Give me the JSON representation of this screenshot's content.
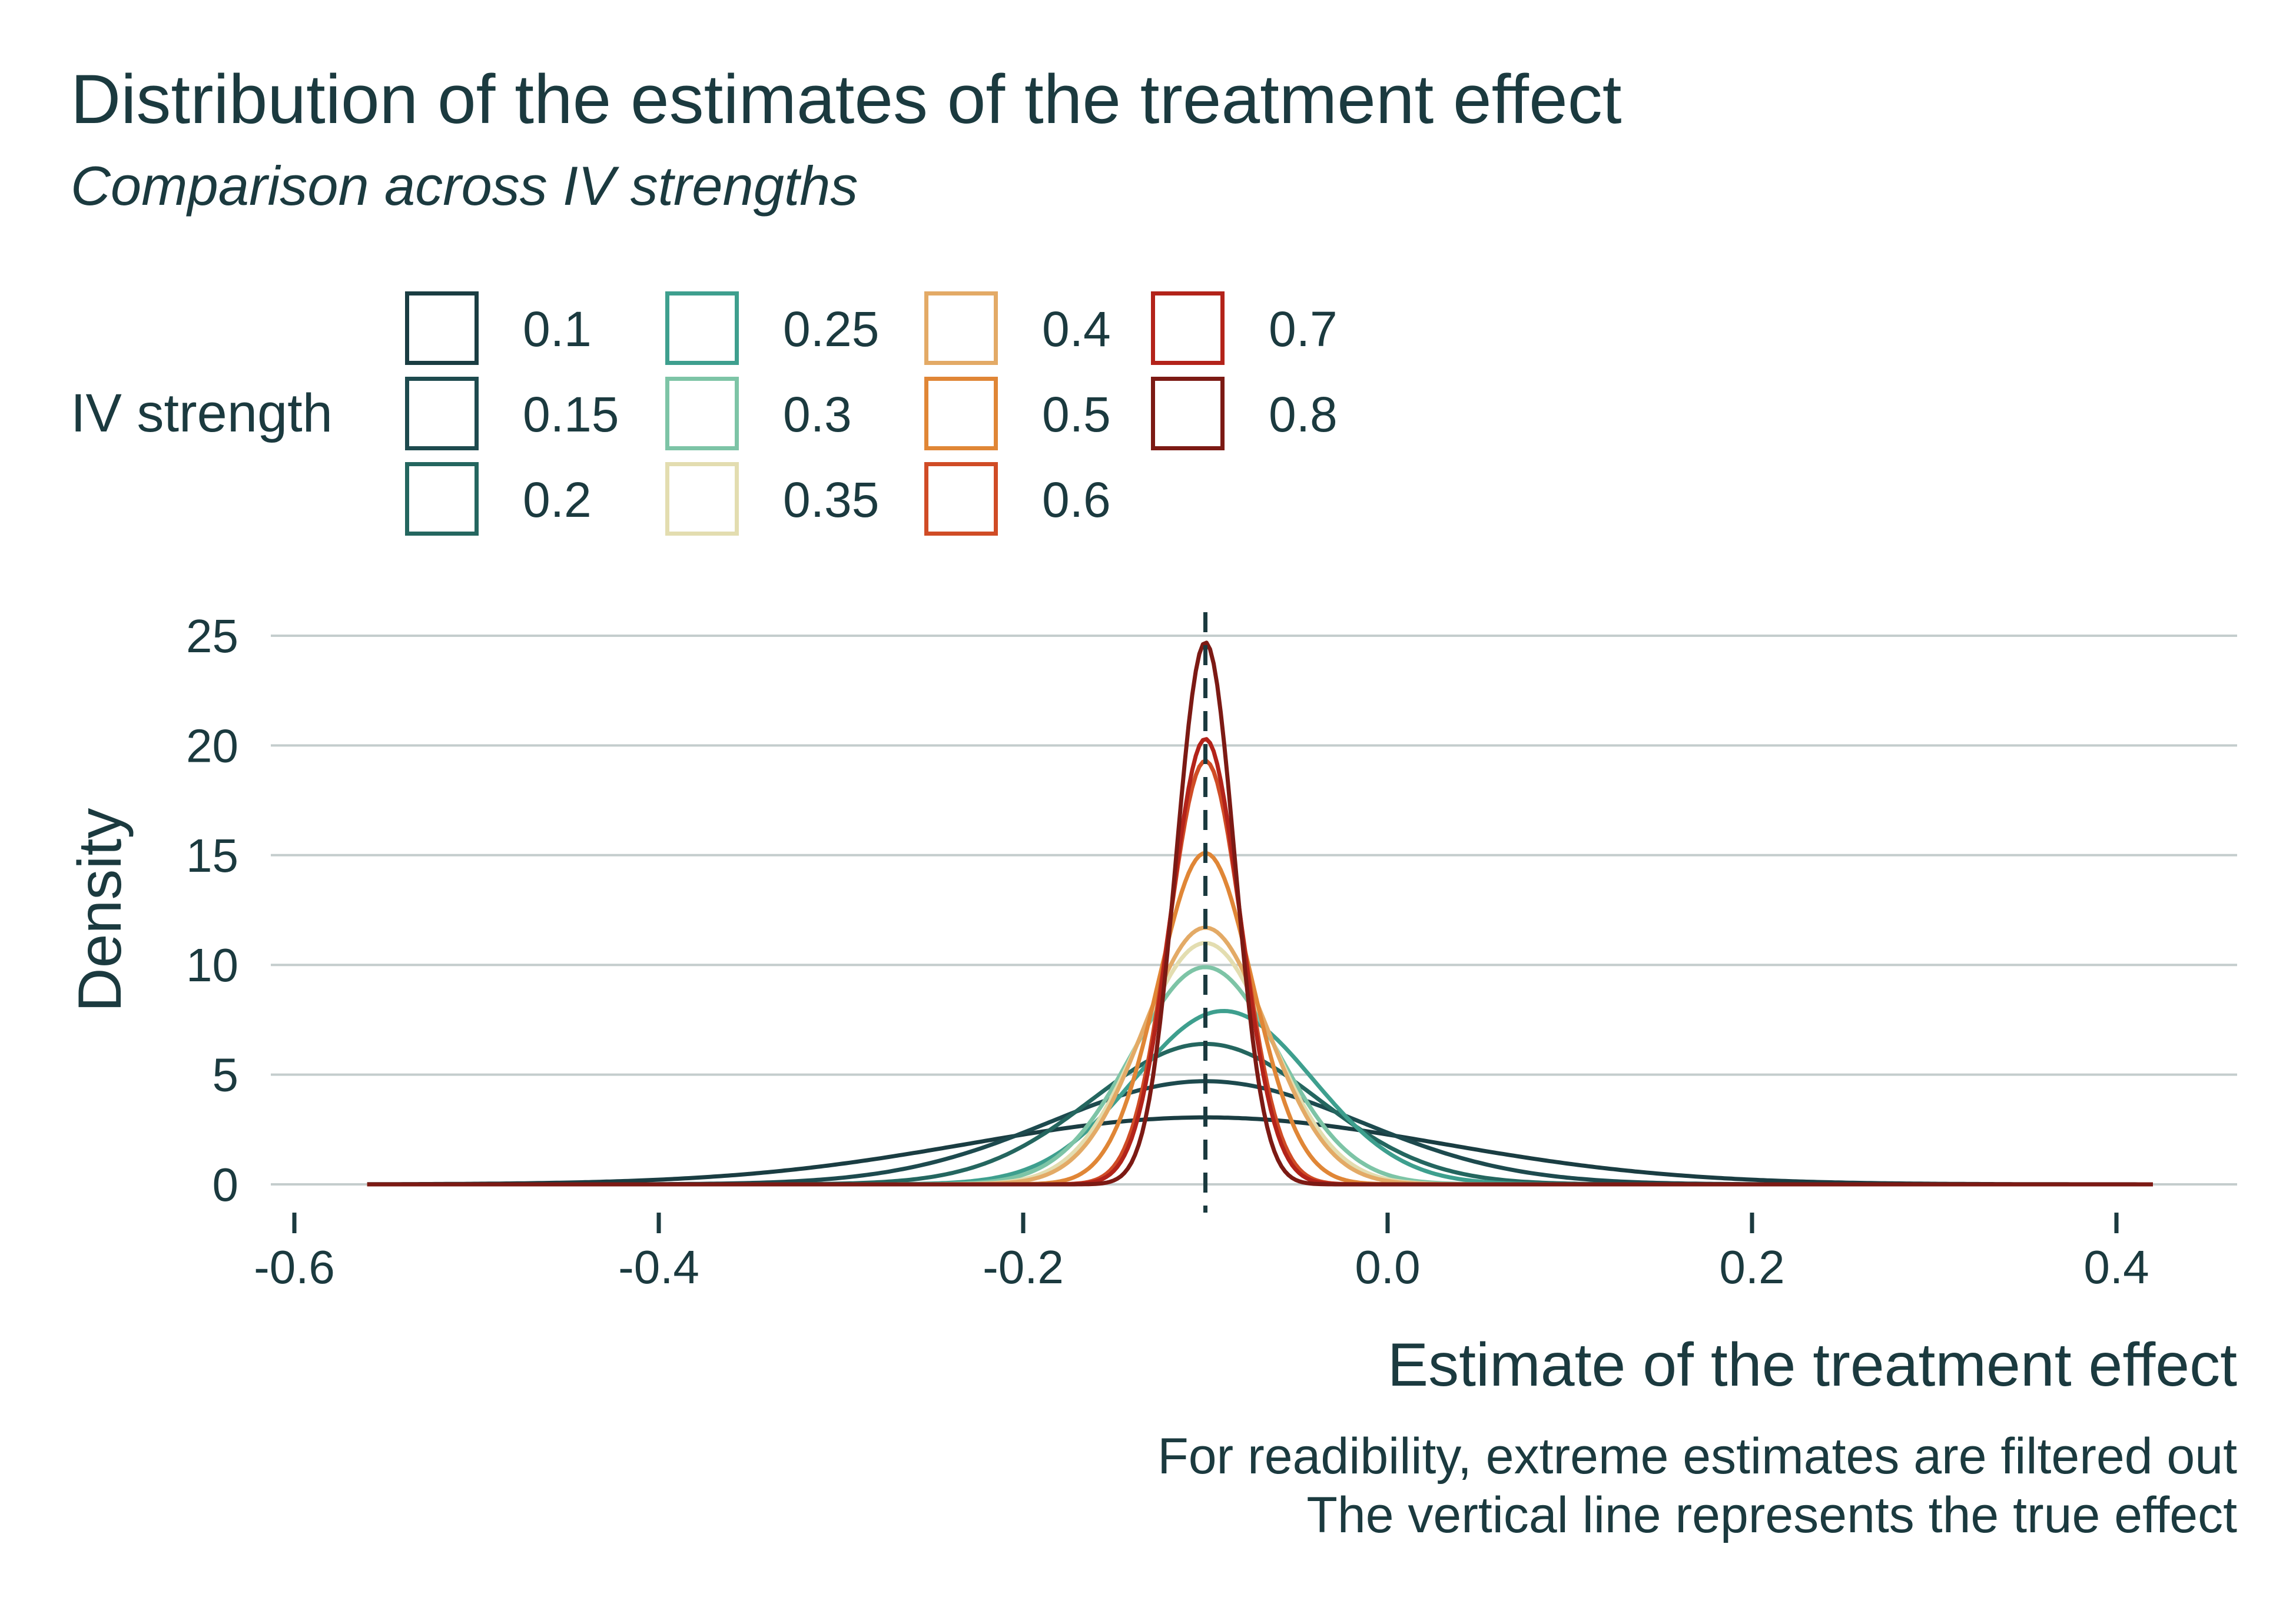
{
  "chart_data": {
    "type": "line",
    "title": "Distribution of the estimates of the treatment effect",
    "subtitle": "Comparison across IV strengths",
    "xlabel": "Estimate of the treatment effect",
    "ylabel": "Density",
    "caption": [
      "For readibility, extreme estimates are filtered out",
      "The vertical line represents the true effect"
    ],
    "xlim": [
      -0.6,
      0.4
    ],
    "ylim": [
      0,
      25
    ],
    "x_ticks": [
      "-0.6",
      "-0.4",
      "-0.2",
      "0.0",
      "0.2",
      "0.4"
    ],
    "y_ticks": [
      "0",
      "5",
      "10",
      "15",
      "20",
      "25"
    ],
    "grid": "horizontal",
    "reference_line": {
      "x": -0.1,
      "style": "dashed"
    },
    "legend": {
      "title": "IV strength",
      "placement": "top"
    },
    "series": [
      {
        "name": "0.1",
        "color": "#1a3d42",
        "center": -0.1,
        "peak": 3.05,
        "sd": 0.13,
        "x_range": [
          -0.56,
          0.42
        ]
      },
      {
        "name": "0.15",
        "color": "#1d4a4e",
        "center": -0.1,
        "peak": 4.7,
        "sd": 0.085,
        "x_range": [
          -0.56,
          0.42
        ]
      },
      {
        "name": "0.2",
        "color": "#24665f",
        "center": -0.1,
        "peak": 6.4,
        "sd": 0.062,
        "x_range": [
          -0.56,
          0.42
        ]
      },
      {
        "name": "0.25",
        "color": "#3e9f8e",
        "center": -0.09,
        "peak": 7.9,
        "sd": 0.049,
        "x_range": [
          -0.56,
          0.42
        ]
      },
      {
        "name": "0.3",
        "color": "#7dc4a6",
        "center": -0.1,
        "peak": 9.9,
        "sd": 0.04,
        "x_range": [
          -0.56,
          0.42
        ]
      },
      {
        "name": "0.35",
        "color": "#e3ddb0",
        "center": -0.1,
        "peak": 11.0,
        "sd": 0.036,
        "x_range": [
          -0.56,
          0.42
        ]
      },
      {
        "name": "0.4",
        "color": "#e3aa66",
        "center": -0.1,
        "peak": 11.7,
        "sd": 0.034,
        "x_range": [
          -0.56,
          0.42
        ]
      },
      {
        "name": "0.5",
        "color": "#e08636",
        "center": -0.1,
        "peak": 15.1,
        "sd": 0.026,
        "x_range": [
          -0.56,
          0.42
        ]
      },
      {
        "name": "0.6",
        "color": "#d04c26",
        "center": -0.1,
        "peak": 19.3,
        "sd": 0.02,
        "x_range": [
          -0.56,
          0.42
        ]
      },
      {
        "name": "0.7",
        "color": "#b3231a",
        "center": -0.1,
        "peak": 20.3,
        "sd": 0.019,
        "x_range": [
          -0.56,
          0.42
        ]
      },
      {
        "name": "0.8",
        "color": "#7c1a14",
        "center": -0.1,
        "peak": 24.7,
        "sd": 0.016,
        "x_range": [
          -0.56,
          0.42
        ]
      }
    ]
  }
}
